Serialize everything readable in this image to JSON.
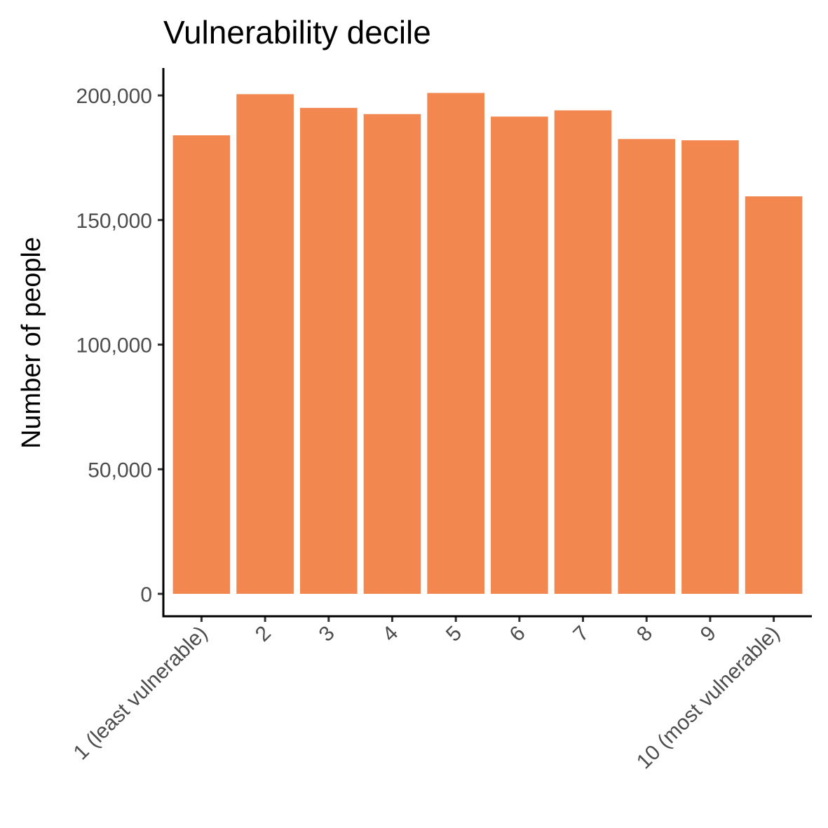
{
  "chart_data": {
    "type": "bar",
    "title": "Vulnerability decile",
    "xlabel": "",
    "ylabel": "Number of people",
    "categories": [
      "1 (least vulnerable)",
      "2",
      "3",
      "4",
      "5",
      "6",
      "7",
      "8",
      "9",
      "10 (most vulnerable)"
    ],
    "values": [
      184000,
      200500,
      195000,
      192500,
      201000,
      191500,
      194000,
      182500,
      182000,
      159500
    ],
    "ylim": [
      -9000,
      211000
    ],
    "yticks": [
      0,
      50000,
      100000,
      150000,
      200000
    ],
    "ytick_labels": [
      "0",
      "50,000",
      "100,000",
      "150,000",
      "200,000"
    ],
    "bar_color": "#F2874F",
    "grid": false,
    "legend": "none"
  }
}
